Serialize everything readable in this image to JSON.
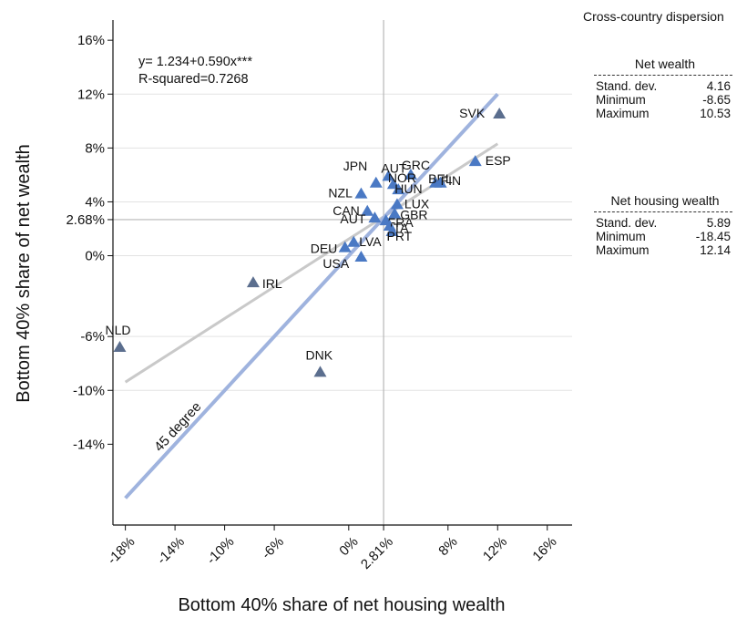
{
  "chart_data": {
    "type": "scatter",
    "title": "",
    "xlabel": "Bottom 40% share of net housing wealth",
    "ylabel": "Bottom 40% share of net wealth",
    "xlim": [
      -19,
      18
    ],
    "ylim": [
      -20,
      17.5
    ],
    "x_ticks": [
      {
        "value": -18,
        "label": "-18%"
      },
      {
        "value": -14,
        "label": "-14%"
      },
      {
        "value": -10,
        "label": "-10%"
      },
      {
        "value": -6,
        "label": "-6%"
      },
      {
        "value": 0,
        "label": "0%"
      },
      {
        "value": 2.81,
        "label": "2.81%"
      },
      {
        "value": 8,
        "label": "8%"
      },
      {
        "value": 12,
        "label": "12%"
      },
      {
        "value": 16,
        "label": "16%"
      }
    ],
    "y_ticks": [
      {
        "value": 16,
        "label": "16%"
      },
      {
        "value": 12,
        "label": "12%"
      },
      {
        "value": 8,
        "label": "8%"
      },
      {
        "value": 4,
        "label": "4%"
      },
      {
        "value": 2.68,
        "label": "2.68%"
      },
      {
        "value": 0,
        "label": "0%"
      },
      {
        "value": -6,
        "label": "-6%"
      },
      {
        "value": -10,
        "label": "-10%"
      },
      {
        "value": -14,
        "label": "-14%"
      }
    ],
    "gridlines_y": [
      12,
      8,
      4,
      2.68,
      0,
      -6,
      -10
    ],
    "mean_lines": {
      "x": 2.81,
      "y": 2.68
    },
    "regression": {
      "intercept": 1.234,
      "slope": 0.59,
      "x_range": [
        -18,
        12
      ]
    },
    "degree45_line": {
      "x_range": [
        -18,
        12
      ],
      "label": "45 degree"
    },
    "annotation_lines": [
      "y= 1.234+0.590x***",
      "R-squared=0.7268"
    ],
    "points": [
      {
        "label": "SVK",
        "x": 12.14,
        "y": 10.53,
        "color": "dark"
      },
      {
        "label": "ESP",
        "x": 10.2,
        "y": 7.0,
        "color": "blue"
      },
      {
        "label": "JPN",
        "x": 2.2,
        "y": 5.4,
        "color": "blue"
      },
      {
        "label": "AUT",
        "x": 3.2,
        "y": 5.9,
        "color": "blue"
      },
      {
        "label": "GRC",
        "x": 5.0,
        "y": 6.0,
        "color": "blue"
      },
      {
        "label": "NOR",
        "x": 3.6,
        "y": 5.3,
        "color": "blue"
      },
      {
        "label": "BEL",
        "x": 7.0,
        "y": 5.4,
        "color": "blue"
      },
      {
        "label": "FIN",
        "x": 7.4,
        "y": 5.4,
        "color": "blue"
      },
      {
        "label": "HUN",
        "x": 4.0,
        "y": 4.9,
        "color": "blue"
      },
      {
        "label": "NZL",
        "x": 1.0,
        "y": 4.6,
        "color": "blue"
      },
      {
        "label": "LUX",
        "x": 3.9,
        "y": 3.8,
        "color": "blue"
      },
      {
        "label": "GBR",
        "x": 3.7,
        "y": 3.1,
        "color": "blue"
      },
      {
        "label": "CAN",
        "x": 1.5,
        "y": 3.3,
        "color": "blue"
      },
      {
        "label": "FRA",
        "x": 3.0,
        "y": 2.6,
        "color": "blue"
      },
      {
        "label": "ITA",
        "x": 3.3,
        "y": 2.2,
        "color": "blue"
      },
      {
        "label": "PRT",
        "x": 3.5,
        "y": 1.8,
        "color": "blue"
      },
      {
        "label": "AUT",
        "x": 2.1,
        "y": 2.8,
        "color": "blue"
      },
      {
        "label": "LVA",
        "x": 0.4,
        "y": 1.0,
        "color": "blue"
      },
      {
        "label": "DEU",
        "x": -0.3,
        "y": 0.6,
        "color": "blue"
      },
      {
        "label": "USA",
        "x": 1.0,
        "y": -0.1,
        "color": "blue"
      },
      {
        "label": "IRL",
        "x": -7.7,
        "y": -2.0,
        "color": "dark"
      },
      {
        "label": "NLD",
        "x": -18.45,
        "y": -6.8,
        "color": "dark"
      },
      {
        "label": "DNK",
        "x": -2.3,
        "y": -8.65,
        "color": "dark"
      }
    ],
    "grid": true,
    "legend": "none"
  },
  "colors": {
    "point_blue": "#4a79c4",
    "point_dark": "#5b6e8e",
    "line_45": "#9fb3de",
    "line_fit": "#c9c9c9",
    "grid": "#e3e3e3",
    "mean_line": "#b8b8b8",
    "axis": "#111111"
  },
  "side_panel": {
    "title": "Cross-country dispersion",
    "net_wealth": {
      "heading": "Net wealth",
      "rows": [
        {
          "label": "Stand. dev.",
          "value": "4.16"
        },
        {
          "label": "Minimum",
          "value": "-8.65"
        },
        {
          "label": "Maximum",
          "value": "10.53"
        }
      ]
    },
    "net_housing_wealth": {
      "heading": "Net housing wealth",
      "rows": [
        {
          "label": "Stand. dev.",
          "value": "5.89"
        },
        {
          "label": "Minimum",
          "value": "-18.45"
        },
        {
          "label": "Maximum",
          "value": "12.14"
        }
      ]
    }
  }
}
